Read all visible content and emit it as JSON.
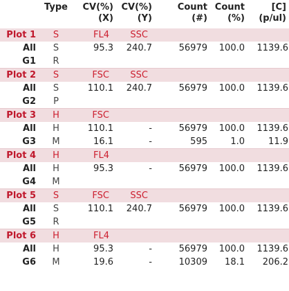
{
  "headers": [
    "",
    "Type",
    "CV(%)\n(X)",
    "CV(%)\n(Y)",
    "Count\n(#)",
    "Count\n(%)",
    "[C]\n(p/ul)"
  ],
  "rows": [
    {
      "kind": "plot",
      "cells": [
        "Plot 1",
        "S",
        "FL4",
        "SSC",
        "",
        "",
        ""
      ]
    },
    {
      "kind": "data",
      "cells": [
        "All",
        "S",
        "95.3",
        "240.7",
        "56979",
        "100.0",
        "1139.6"
      ]
    },
    {
      "kind": "data",
      "cells": [
        "G1",
        "R",
        "",
        "",
        "",
        "",
        ""
      ]
    },
    {
      "kind": "plot",
      "cells": [
        "Plot 2",
        "S",
        "FSC",
        "SSC",
        "",
        "",
        ""
      ]
    },
    {
      "kind": "data",
      "cells": [
        "All",
        "S",
        "110.1",
        "240.7",
        "56979",
        "100.0",
        "1139.6"
      ]
    },
    {
      "kind": "data",
      "cells": [
        "G2",
        "P",
        "",
        "",
        "",
        "",
        ""
      ]
    },
    {
      "kind": "plot",
      "cells": [
        "Plot 3",
        "H",
        "FSC",
        "",
        "",
        "",
        ""
      ]
    },
    {
      "kind": "data",
      "cells": [
        "All",
        "H",
        "110.1",
        "-",
        "56979",
        "100.0",
        "1139.6"
      ]
    },
    {
      "kind": "data",
      "cells": [
        "G3",
        "M",
        "16.1",
        "-",
        "595",
        "1.0",
        "11.9"
      ]
    },
    {
      "kind": "plot",
      "cells": [
        "Plot 4",
        "H",
        "FL4",
        "",
        "",
        "",
        ""
      ]
    },
    {
      "kind": "data",
      "cells": [
        "All",
        "H",
        "95.3",
        "-",
        "56979",
        "100.0",
        "1139.6"
      ]
    },
    {
      "kind": "data",
      "cells": [
        "G4",
        "M",
        "",
        "",
        "",
        "",
        ""
      ]
    },
    {
      "kind": "plot",
      "cells": [
        "Plot 5",
        "S",
        "FSC",
        "SSC",
        "",
        "",
        ""
      ]
    },
    {
      "kind": "data",
      "cells": [
        "All",
        "S",
        "110.1",
        "240.7",
        "56979",
        "100.0",
        "1139.6"
      ]
    },
    {
      "kind": "data",
      "cells": [
        "G5",
        "R",
        "",
        "",
        "",
        "",
        ""
      ]
    },
    {
      "kind": "plot",
      "cells": [
        "Plot 6",
        "H",
        "FL4",
        "",
        "",
        "",
        ""
      ]
    },
    {
      "kind": "data",
      "cells": [
        "All",
        "H",
        "95.3",
        "-",
        "56979",
        "100.0",
        "1139.6"
      ]
    },
    {
      "kind": "data",
      "cells": [
        "G6",
        "M",
        "19.6",
        "-",
        "10309",
        "18.1",
        "206.2"
      ]
    }
  ]
}
